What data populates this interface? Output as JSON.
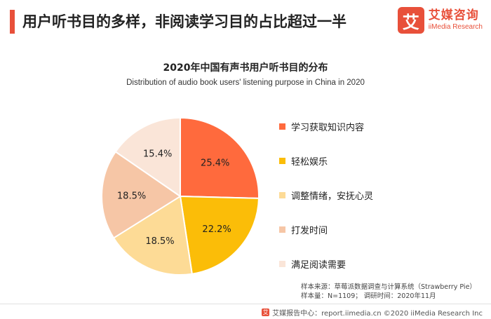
{
  "header": {
    "title": "用户听书目的多样，非阅读学习目的占比超过一半",
    "accent_color": "#e8503a"
  },
  "brand": {
    "logo_char": "艾",
    "name_cn": "艾媒咨询",
    "name_en": "iiMedia Research"
  },
  "chart_data": {
    "type": "pie",
    "title": "2020年中国有声书用户听书目的分布",
    "subtitle": "Distribution of audio book users' listening purpose in China in 2020",
    "slices": [
      {
        "label": "学习获取知识内容",
        "value": 25.4,
        "value_label": "25.4%",
        "color": "#ff6a3d"
      },
      {
        "label": "轻松娱乐",
        "value": 22.2,
        "value_label": "22.2%",
        "color": "#fbbd08"
      },
      {
        "label": "调整情绪，安抚心灵",
        "value": 18.5,
        "value_label": "18.5%",
        "color": "#fddb96"
      },
      {
        "label": "打发时间",
        "value": 18.5,
        "value_label": "18.5%",
        "color": "#f6c6a6"
      },
      {
        "label": "满足阅读需要",
        "value": 15.4,
        "value_label": "15.4%",
        "color": "#fae5d8"
      }
    ],
    "start_angle_deg": 0,
    "direction": "clockwise",
    "legend_position": "right"
  },
  "source": {
    "line1": "样本来源：草莓派数据调查与计算系统（Strawberry Pie）",
    "line2": "样本量：N=1109；  调研时间：2020年11月"
  },
  "footer": {
    "text": "艾媒报告中心：report.iimedia.cn  ©2020  iiMedia Research  Inc"
  }
}
